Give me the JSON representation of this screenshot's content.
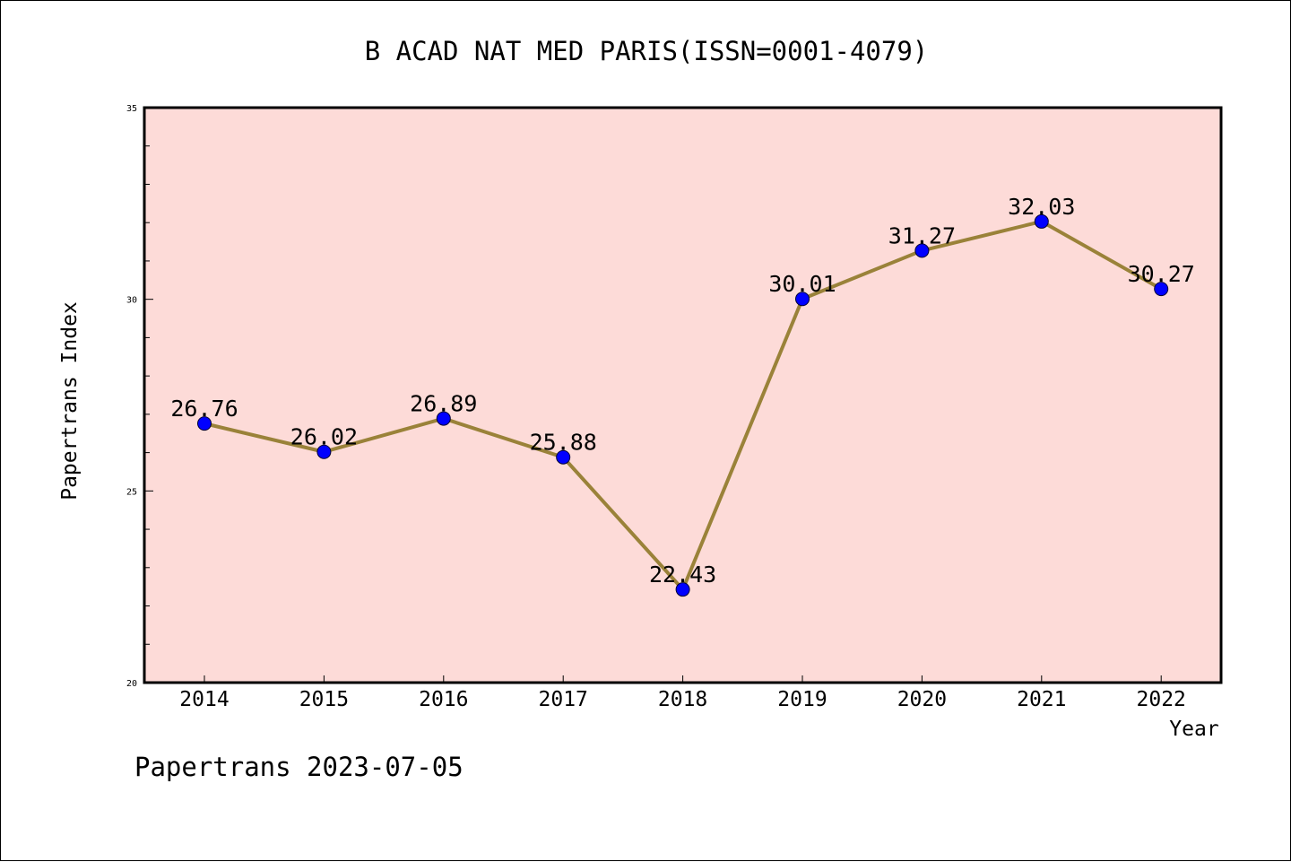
{
  "chart_data": {
    "type": "line",
    "title": "B ACAD NAT MED PARIS(ISSN=0001-4079)",
    "xlabel": "Year",
    "ylabel": "Papertrans Index",
    "categories": [
      "2014",
      "2015",
      "2016",
      "2017",
      "2018",
      "2019",
      "2020",
      "2021",
      "2022"
    ],
    "values": [
      26.76,
      26.02,
      26.89,
      25.88,
      22.43,
      30.01,
      31.27,
      32.03,
      30.27
    ],
    "data_labels": [
      "26.76",
      "26.02",
      "26.89",
      "25.88",
      "22.43",
      "30.01",
      "31.27",
      "32.03",
      "30.27"
    ],
    "ylim": [
      20,
      35
    ],
    "yticks": [
      20,
      25,
      30,
      35
    ],
    "ytick_labels": [
      "20",
      "25",
      "30",
      "35"
    ],
    "grid": false,
    "colors": {
      "plot_background": "#fddbd8",
      "line": "#9a8239",
      "marker": "#0000ff"
    }
  },
  "footer": {
    "text": "Papertrans 2023-07-05"
  }
}
